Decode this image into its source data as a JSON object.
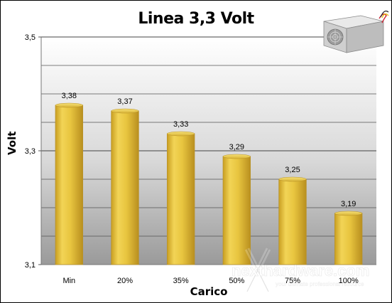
{
  "chart_data": {
    "type": "bar",
    "title": "Linea 3,3 Volt",
    "xlabel": "Carico",
    "ylabel": "Volt",
    "categories": [
      "Min",
      "20%",
      "35%",
      "50%",
      "75%",
      "100%"
    ],
    "values": [
      3.38,
      3.37,
      3.33,
      3.29,
      3.25,
      3.19
    ],
    "value_labels": [
      "3,38",
      "3,37",
      "3,33",
      "3,29",
      "3,25",
      "3,19"
    ],
    "ylim": [
      3.1,
      3.5
    ],
    "y_ticks": [
      3.1,
      3.3,
      3.5
    ],
    "y_tick_labels": [
      "3,1",
      "3,3",
      "3,5"
    ],
    "minor_grid_step": 0.05,
    "grid": true,
    "bar_color": "#e6c33a",
    "bar_edge_color": "#b8922a"
  },
  "icons": {
    "psu_image": "power-supply-image",
    "watermark": "hwupgrade-watermark"
  },
  "watermark_text": {
    "brand": "nexthardware.com",
    "tagline": "your ultimate professional resource"
  }
}
